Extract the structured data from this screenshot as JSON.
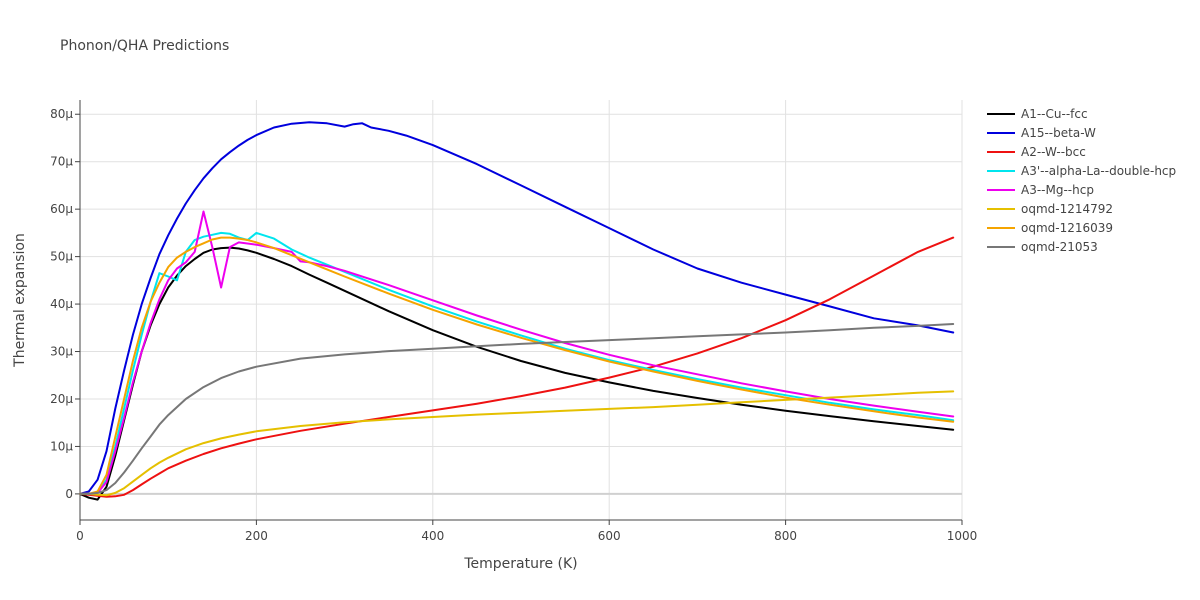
{
  "chart_data": {
    "type": "line",
    "title": "Phonon/QHA Predictions",
    "xlabel": "Temperature (K)",
    "ylabel": "Thermal expansion",
    "xlim": [
      0,
      1000
    ],
    "ylim": [
      -5.5,
      83
    ],
    "x_ticks": [
      0,
      200,
      400,
      600,
      800,
      1000
    ],
    "x_tick_labels": [
      "0",
      "200",
      "400",
      "600",
      "800",
      "1000"
    ],
    "y_ticks": [
      0,
      10,
      20,
      30,
      40,
      50,
      60,
      70,
      80
    ],
    "y_tick_labels": [
      "0",
      "10μ",
      "20μ",
      "30μ",
      "40μ",
      "50μ",
      "60μ",
      "70μ",
      "80μ"
    ],
    "y_unit_note": "values in units of 1e-6 per K (μ)",
    "grid": true,
    "legend_position": "right",
    "series": [
      {
        "name": "A1--Cu--fcc",
        "color": "#000000",
        "x": [
          0,
          10,
          20,
          30,
          40,
          50,
          60,
          70,
          80,
          90,
          100,
          110,
          120,
          130,
          140,
          150,
          160,
          170,
          180,
          190,
          200,
          220,
          240,
          260,
          280,
          300,
          350,
          400,
          450,
          500,
          550,
          600,
          650,
          700,
          750,
          800,
          850,
          900,
          950,
          990
        ],
        "y": [
          0,
          -0.8,
          -1.2,
          1.5,
          8,
          15.5,
          23,
          30,
          35.5,
          40,
          43.5,
          46,
          48,
          49.5,
          50.8,
          51.5,
          51.8,
          51.9,
          51.7,
          51.3,
          50.8,
          49.5,
          48,
          46.2,
          44.5,
          42.8,
          38.5,
          34.5,
          31,
          28,
          25.5,
          23.5,
          21.7,
          20.2,
          18.8,
          17.5,
          16.4,
          15.3,
          14.3,
          13.5
        ]
      },
      {
        "name": "A15--beta-W",
        "color": "#0000dd",
        "x": [
          0,
          10,
          20,
          30,
          40,
          50,
          60,
          70,
          80,
          90,
          100,
          110,
          120,
          130,
          140,
          150,
          160,
          170,
          180,
          190,
          200,
          220,
          240,
          260,
          280,
          300,
          310,
          320,
          330,
          350,
          370,
          400,
          450,
          500,
          550,
          600,
          650,
          700,
          750,
          800,
          850,
          900,
          950,
          990
        ],
        "y": [
          0,
          0.5,
          3,
          9,
          18,
          26,
          33.5,
          40,
          45.5,
          50.5,
          54.5,
          58,
          61.2,
          64,
          66.5,
          68.6,
          70.5,
          72,
          73.4,
          74.6,
          75.6,
          77.2,
          78,
          78.3,
          78.1,
          77.4,
          77.9,
          78.1,
          77.2,
          76.5,
          75.5,
          73.5,
          69.5,
          65,
          60.5,
          56,
          51.5,
          47.5,
          44.5,
          42,
          39.5,
          37,
          35.5,
          34
        ]
      },
      {
        "name": "A2--W--bcc",
        "color": "#ee1111",
        "x": [
          0,
          10,
          20,
          30,
          40,
          50,
          60,
          70,
          80,
          90,
          100,
          120,
          140,
          160,
          180,
          200,
          250,
          300,
          350,
          400,
          450,
          500,
          550,
          600,
          650,
          700,
          750,
          800,
          850,
          900,
          950,
          990
        ],
        "y": [
          0,
          -0.2,
          -0.4,
          -0.6,
          -0.5,
          -0.2,
          0.8,
          2,
          3.2,
          4.3,
          5.4,
          7,
          8.4,
          9.6,
          10.6,
          11.5,
          13.3,
          14.8,
          16.2,
          17.6,
          19,
          20.6,
          22.4,
          24.5,
          26.8,
          29.6,
          32.8,
          36.6,
          41,
          46,
          51,
          54
        ]
      },
      {
        "name": "A3'--alpha-La--double-hcp",
        "color": "#00e5ee",
        "x": [
          0,
          10,
          20,
          30,
          40,
          50,
          60,
          70,
          80,
          90,
          100,
          110,
          120,
          130,
          140,
          150,
          160,
          170,
          180,
          190,
          200,
          220,
          240,
          260,
          280,
          300,
          350,
          400,
          450,
          500,
          550,
          600,
          650,
          700,
          750,
          800,
          850,
          900,
          950,
          990
        ],
        "y": [
          0,
          0,
          0.3,
          3,
          10,
          18,
          26,
          33.5,
          40.5,
          46.5,
          45.8,
          45,
          51,
          53.5,
          54.2,
          54.6,
          55,
          54.8,
          54,
          53.5,
          55,
          53.8,
          51.5,
          49.8,
          48.3,
          46.8,
          43,
          39.5,
          36.3,
          33.4,
          30.6,
          28.2,
          26.1,
          24.2,
          22.4,
          20.8,
          19.2,
          17.8,
          16.6,
          15.5
        ]
      },
      {
        "name": "A3--Mg--hcp",
        "color": "#ee00ee",
        "x": [
          0,
          10,
          20,
          30,
          40,
          50,
          60,
          70,
          80,
          90,
          100,
          110,
          120,
          130,
          140,
          150,
          160,
          170,
          180,
          200,
          220,
          240,
          250,
          260,
          280,
          300,
          350,
          400,
          450,
          500,
          550,
          600,
          650,
          700,
          750,
          800,
          850,
          900,
          950,
          990
        ],
        "y": [
          0,
          0,
          0.2,
          2.5,
          9,
          16,
          23.5,
          30,
          36,
          41,
          45,
          47.5,
          48.8,
          51,
          59.5,
          52,
          43.5,
          52,
          53,
          52.5,
          51.8,
          51,
          49,
          48.8,
          48,
          47,
          44,
          40.8,
          37.6,
          34.6,
          31.8,
          29.3,
          27.1,
          25.2,
          23.3,
          21.6,
          20,
          18.6,
          17.3,
          16.3
        ]
      },
      {
        "name": "oqmd-1214792",
        "color": "#e5c000",
        "x": [
          0,
          10,
          20,
          30,
          40,
          50,
          60,
          70,
          80,
          90,
          100,
          120,
          140,
          160,
          180,
          200,
          250,
          300,
          350,
          400,
          450,
          500,
          550,
          600,
          650,
          700,
          750,
          800,
          850,
          900,
          950,
          990
        ],
        "y": [
          0,
          0,
          -0.2,
          -0.3,
          0.2,
          1.2,
          2.6,
          4,
          5.4,
          6.6,
          7.6,
          9.4,
          10.7,
          11.7,
          12.5,
          13.2,
          14.3,
          15.1,
          15.7,
          16.2,
          16.7,
          17.1,
          17.5,
          17.9,
          18.3,
          18.8,
          19.3,
          19.8,
          20.3,
          20.8,
          21.3,
          21.6
        ]
      },
      {
        "name": "oqmd-1216039",
        "color": "#f5a400",
        "x": [
          0,
          10,
          20,
          30,
          40,
          50,
          60,
          70,
          80,
          90,
          100,
          110,
          120,
          130,
          140,
          150,
          160,
          170,
          180,
          190,
          200,
          220,
          240,
          260,
          280,
          300,
          350,
          400,
          450,
          500,
          550,
          600,
          650,
          700,
          750,
          800,
          850,
          900,
          950,
          990
        ],
        "y": [
          0,
          0,
          0.5,
          4,
          12,
          20,
          28,
          35,
          40.5,
          44.5,
          47.8,
          49.8,
          51,
          52,
          52.8,
          53.6,
          54,
          54,
          53.8,
          53.5,
          53,
          51.8,
          50.3,
          48.8,
          47.3,
          45.8,
          42.2,
          38.8,
          35.7,
          32.9,
          30.3,
          27.9,
          25.8,
          23.8,
          22,
          20.3,
          18.8,
          17.4,
          16.1,
          15.2
        ]
      },
      {
        "name": "oqmd-21053",
        "color": "#777777",
        "x": [
          0,
          10,
          20,
          30,
          40,
          50,
          60,
          70,
          80,
          90,
          100,
          120,
          140,
          160,
          180,
          200,
          250,
          300,
          350,
          400,
          450,
          500,
          550,
          600,
          650,
          700,
          750,
          800,
          850,
          900,
          950,
          990
        ],
        "y": [
          0,
          0,
          0.2,
          0.8,
          2.3,
          4.5,
          7,
          9.6,
          12.1,
          14.6,
          16.6,
          20,
          22.5,
          24.4,
          25.8,
          26.8,
          28.5,
          29.4,
          30.1,
          30.6,
          31.1,
          31.6,
          32,
          32.4,
          32.8,
          33.2,
          33.6,
          34,
          34.5,
          35,
          35.4,
          35.8
        ]
      }
    ]
  }
}
